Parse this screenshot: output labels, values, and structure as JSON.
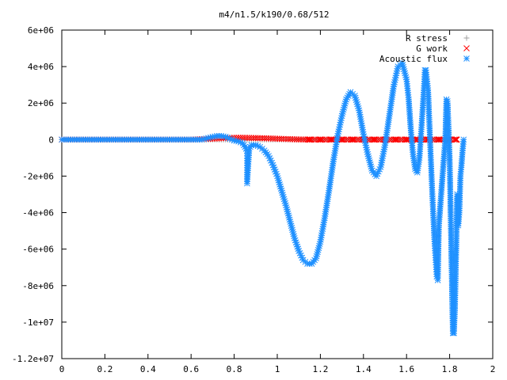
{
  "chart_data": {
    "type": "scatter",
    "title": "m4/n1.5/k190/0.68/512",
    "xlim": [
      0,
      2
    ],
    "ylim": [
      -12000000,
      6000000
    ],
    "x_ticks": [
      0,
      0.2,
      0.4,
      0.6,
      0.8,
      1,
      1.2,
      1.4,
      1.6,
      1.8,
      2
    ],
    "x_tick_labels": [
      "0",
      "0.2",
      "0.4",
      "0.6",
      "0.8",
      "1",
      "1.2",
      "1.4",
      "1.6",
      "1.8",
      "2"
    ],
    "y_ticks": [
      -12000000,
      -10000000,
      -8000000,
      -6000000,
      -4000000,
      -2000000,
      0,
      2000000,
      4000000,
      6000000
    ],
    "y_tick_labels": [
      "-1.2e+07",
      "-1e+07",
      "-8e+06",
      "-6e+06",
      "-4e+06",
      "-2e+06",
      "0",
      "2e+06",
      "4e+06",
      "6e+06"
    ],
    "legend_position": "top-right",
    "grid": false,
    "series": [
      {
        "name": "R stress",
        "marker": "+",
        "color": "#a0a0a0",
        "points": [
          [
            0.0,
            0
          ],
          [
            0.2,
            0
          ],
          [
            0.4,
            0
          ],
          [
            0.6,
            0
          ],
          [
            0.7,
            0
          ],
          [
            0.8,
            0
          ],
          [
            1.0,
            0
          ],
          [
            1.2,
            0
          ],
          [
            1.4,
            0
          ],
          [
            1.6,
            0
          ],
          [
            1.8,
            0
          ]
        ]
      },
      {
        "name": "G work",
        "marker": "x",
        "color": "#ff0000",
        "points": [
          [
            0.0,
            0
          ],
          [
            0.1,
            0
          ],
          [
            0.2,
            0
          ],
          [
            0.3,
            0
          ],
          [
            0.4,
            0
          ],
          [
            0.5,
            0
          ],
          [
            0.6,
            0
          ],
          [
            0.7,
            50000
          ],
          [
            0.75,
            80000
          ],
          [
            0.8,
            100000
          ],
          [
            0.85,
            100000
          ],
          [
            0.9,
            90000
          ],
          [
            0.95,
            70000
          ],
          [
            1.0,
            50000
          ],
          [
            1.05,
            30000
          ],
          [
            1.1,
            10000
          ],
          [
            1.15,
            0
          ],
          [
            1.2,
            0
          ],
          [
            1.25,
            0
          ],
          [
            1.3,
            0
          ],
          [
            1.35,
            0
          ],
          [
            1.4,
            0
          ],
          [
            1.45,
            0
          ],
          [
            1.5,
            0
          ],
          [
            1.55,
            0
          ],
          [
            1.6,
            0
          ],
          [
            1.65,
            0
          ],
          [
            1.7,
            0
          ],
          [
            1.75,
            0
          ],
          [
            1.8,
            0
          ],
          [
            1.83,
            0
          ]
        ]
      },
      {
        "name": "Acoustic flux",
        "marker": "*",
        "color": "#1e90ff",
        "points": [
          [
            0.0,
            0
          ],
          [
            0.05,
            0
          ],
          [
            0.1,
            0
          ],
          [
            0.15,
            0
          ],
          [
            0.2,
            0
          ],
          [
            0.25,
            0
          ],
          [
            0.3,
            0
          ],
          [
            0.35,
            0
          ],
          [
            0.4,
            0
          ],
          [
            0.45,
            0
          ],
          [
            0.5,
            0
          ],
          [
            0.55,
            0
          ],
          [
            0.6,
            0
          ],
          [
            0.65,
            0
          ],
          [
            0.7,
            150000
          ],
          [
            0.72,
            200000
          ],
          [
            0.74,
            200000
          ],
          [
            0.76,
            150000
          ],
          [
            0.78,
            50000
          ],
          [
            0.8,
            -50000
          ],
          [
            0.82,
            -100000
          ],
          [
            0.84,
            -200000
          ],
          [
            0.86,
            -600000
          ],
          [
            0.86,
            -900000
          ],
          [
            0.86,
            -1800000
          ],
          [
            0.86,
            -2400000
          ],
          [
            0.87,
            -500000
          ],
          [
            0.88,
            -300000
          ],
          [
            0.9,
            -300000
          ],
          [
            0.92,
            -400000
          ],
          [
            0.94,
            -600000
          ],
          [
            0.96,
            -900000
          ],
          [
            0.98,
            -1400000
          ],
          [
            1.0,
            -2000000
          ],
          [
            1.02,
            -2800000
          ],
          [
            1.04,
            -3600000
          ],
          [
            1.06,
            -4500000
          ],
          [
            1.08,
            -5400000
          ],
          [
            1.1,
            -6100000
          ],
          [
            1.12,
            -6600000
          ],
          [
            1.14,
            -6800000
          ],
          [
            1.16,
            -6800000
          ],
          [
            1.18,
            -6500000
          ],
          [
            1.2,
            -5600000
          ],
          [
            1.22,
            -4300000
          ],
          [
            1.24,
            -2800000
          ],
          [
            1.26,
            -1200000
          ],
          [
            1.28,
            200000
          ],
          [
            1.3,
            1300000
          ],
          [
            1.32,
            2200000
          ],
          [
            1.34,
            2600000
          ],
          [
            1.36,
            2400000
          ],
          [
            1.38,
            1600000
          ],
          [
            1.4,
            300000
          ],
          [
            1.42,
            -800000
          ],
          [
            1.44,
            -1700000
          ],
          [
            1.46,
            -2000000
          ],
          [
            1.48,
            -1500000
          ],
          [
            1.5,
            -300000
          ],
          [
            1.52,
            1300000
          ],
          [
            1.54,
            2900000
          ],
          [
            1.56,
            4000000
          ],
          [
            1.58,
            4200000
          ],
          [
            1.6,
            3300000
          ],
          [
            1.61,
            2200000
          ],
          [
            1.62,
            500000
          ],
          [
            1.63,
            -800000
          ],
          [
            1.64,
            -1600000
          ],
          [
            1.65,
            -1800000
          ],
          [
            1.66,
            -1000000
          ],
          [
            1.67,
            800000
          ],
          [
            1.68,
            2700000
          ],
          [
            1.685,
            3800000
          ],
          [
            1.69,
            3800000
          ],
          [
            1.7,
            2700000
          ],
          [
            1.705,
            1200000
          ],
          [
            1.71,
            -300000
          ],
          [
            1.72,
            -3100000
          ],
          [
            1.725,
            -4400000
          ],
          [
            1.73,
            -5700000
          ],
          [
            1.735,
            -6600000
          ],
          [
            1.74,
            -7500000
          ],
          [
            1.745,
            -7700000
          ],
          [
            1.75,
            -4700000
          ],
          [
            1.76,
            -3100000
          ],
          [
            1.77,
            -1500000
          ],
          [
            1.78,
            0
          ],
          [
            1.785,
            2200000
          ],
          [
            1.79,
            2100000
          ],
          [
            1.8,
            -1000000
          ],
          [
            1.81,
            -7400000
          ],
          [
            1.815,
            -10600000
          ],
          [
            1.82,
            -10600000
          ],
          [
            1.825,
            -9000000
          ],
          [
            1.83,
            -6200000
          ],
          [
            1.835,
            -3000000
          ],
          [
            1.84,
            -4700000
          ],
          [
            1.845,
            -4000000
          ],
          [
            1.85,
            -2000000
          ],
          [
            1.855,
            -1400000
          ],
          [
            1.86,
            -600000
          ],
          [
            1.865,
            0
          ]
        ]
      }
    ]
  }
}
